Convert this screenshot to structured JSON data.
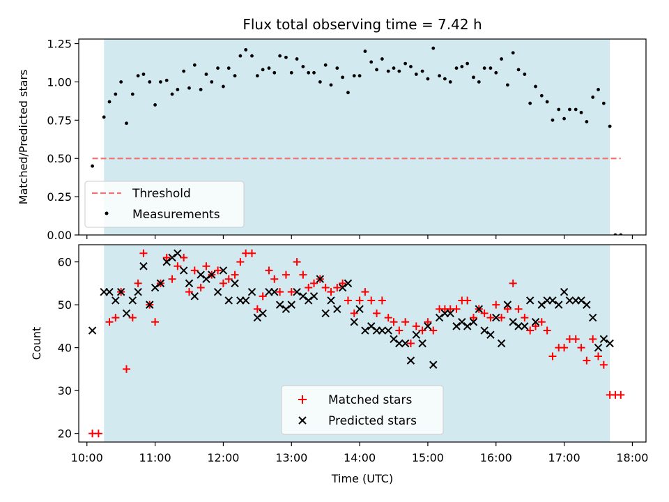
{
  "chart_data": [
    {
      "type": "scatter",
      "title": "Flux total observing time = 7.42 h",
      "xlabel": "",
      "ylabel": "Matched/Predicted stars",
      "xlim": [
        9.88,
        18.2
      ],
      "ylim": [
        0.0,
        1.28
      ],
      "yticks": [
        0.0,
        0.25,
        0.5,
        0.75,
        1.0,
        1.25
      ],
      "ytick_labels": [
        "0.00",
        "0.25",
        "0.50",
        "0.75",
        "1.00",
        "1.25"
      ],
      "shaded_span": [
        10.25,
        17.67
      ],
      "shade_color": "#d3e9f0",
      "threshold": {
        "name": "Threshold",
        "value": 0.5,
        "x": [
          10.08,
          17.83
        ],
        "color": "#f07474"
      },
      "legend": {
        "placement": "lower-left",
        "entries": [
          "Threshold",
          "Measurements"
        ]
      },
      "series": [
        {
          "name": "Measurements",
          "marker": "dot",
          "color": "#000000",
          "x": [
            10.08,
            10.25,
            10.33,
            10.42,
            10.5,
            10.58,
            10.67,
            10.75,
            10.83,
            10.92,
            11.0,
            11.08,
            11.17,
            11.25,
            11.33,
            11.42,
            11.5,
            11.58,
            11.67,
            11.75,
            11.83,
            11.92,
            12.0,
            12.08,
            12.17,
            12.25,
            12.33,
            12.42,
            12.5,
            12.58,
            12.67,
            12.75,
            12.83,
            12.92,
            13.0,
            13.08,
            13.17,
            13.25,
            13.33,
            13.42,
            13.5,
            13.58,
            13.67,
            13.75,
            13.83,
            13.92,
            14.0,
            14.08,
            14.17,
            14.25,
            14.33,
            14.42,
            14.5,
            14.58,
            14.67,
            14.75,
            14.83,
            14.92,
            15.0,
            15.08,
            15.17,
            15.25,
            15.33,
            15.42,
            15.5,
            15.58,
            15.67,
            15.75,
            15.83,
            15.92,
            16.0,
            16.08,
            16.17,
            16.25,
            16.33,
            16.42,
            16.5,
            16.58,
            16.67,
            16.75,
            16.83,
            16.92,
            17.0,
            17.08,
            17.17,
            17.25,
            17.33,
            17.42,
            17.5,
            17.58,
            17.67,
            17.75,
            17.83
          ],
          "y": [
            0.45,
            0.77,
            0.87,
            0.92,
            1.0,
            0.73,
            0.92,
            1.04,
            1.05,
            1.0,
            0.85,
            1.0,
            1.01,
            0.92,
            0.95,
            1.07,
            0.96,
            1.11,
            0.95,
            1.05,
            1.0,
            1.09,
            0.97,
            1.09,
            1.04,
            1.17,
            1.21,
            1.17,
            1.04,
            1.08,
            1.09,
            1.06,
            1.17,
            1.16,
            1.06,
            1.15,
            1.1,
            1.06,
            1.06,
            1.0,
            1.11,
            0.98,
            1.09,
            1.03,
            0.93,
            1.04,
            1.04,
            1.2,
            1.13,
            1.08,
            1.15,
            1.07,
            1.09,
            1.07,
            1.12,
            1.1,
            1.05,
            1.07,
            1.02,
            1.22,
            1.04,
            1.02,
            1.0,
            1.09,
            1.1,
            1.12,
            1.03,
            1.0,
            1.09,
            1.09,
            1.06,
            1.15,
            0.98,
            1.19,
            1.08,
            1.05,
            0.86,
            0.97,
            0.91,
            0.87,
            0.75,
            0.82,
            0.76,
            0.82,
            0.82,
            0.8,
            0.74,
            0.9,
            0.95,
            0.86,
            0.71,
            0.0,
            0.0
          ]
        }
      ]
    },
    {
      "type": "scatter",
      "title": "",
      "xlabel": "Time (UTC)",
      "ylabel": "Count",
      "xlim": [
        9.88,
        18.2
      ],
      "ylim": [
        18,
        64
      ],
      "xticks": [
        10,
        11,
        12,
        13,
        14,
        15,
        16,
        17,
        18
      ],
      "xtick_labels": [
        "10:00",
        "11:00",
        "12:00",
        "13:00",
        "14:00",
        "15:00",
        "16:00",
        "17:00",
        "18:00"
      ],
      "yticks": [
        20,
        30,
        40,
        50,
        60
      ],
      "ytick_labels": [
        "20",
        "30",
        "40",
        "50",
        "60"
      ],
      "shaded_span": [
        10.25,
        17.67
      ],
      "shade_color": "#d3e9f0",
      "legend": {
        "placement": "lower-center",
        "entries": [
          "Matched stars",
          "Predicted stars"
        ]
      },
      "series": [
        {
          "name": "Matched stars",
          "marker": "plus",
          "color": "#ff0000",
          "x": [
            10.08,
            10.17,
            10.33,
            10.42,
            10.5,
            10.58,
            10.67,
            10.75,
            10.83,
            10.92,
            11.0,
            11.08,
            11.17,
            11.25,
            11.33,
            11.42,
            11.5,
            11.58,
            11.67,
            11.75,
            11.83,
            11.92,
            12.0,
            12.08,
            12.17,
            12.25,
            12.33,
            12.42,
            12.5,
            12.58,
            12.67,
            12.75,
            12.83,
            12.92,
            13.0,
            13.08,
            13.17,
            13.25,
            13.33,
            13.42,
            13.5,
            13.58,
            13.67,
            13.75,
            13.83,
            13.92,
            14.0,
            14.08,
            14.17,
            14.25,
            14.33,
            14.42,
            14.5,
            14.58,
            14.67,
            14.75,
            14.83,
            14.92,
            15.0,
            15.08,
            15.17,
            15.25,
            15.33,
            15.42,
            15.5,
            15.58,
            15.67,
            15.75,
            15.83,
            15.92,
            16.0,
            16.08,
            16.17,
            16.25,
            16.33,
            16.42,
            16.5,
            16.58,
            16.67,
            16.75,
            16.83,
            16.92,
            17.0,
            17.08,
            17.17,
            17.25,
            17.33,
            17.42,
            17.5,
            17.58,
            17.67,
            17.75,
            17.83
          ],
          "y": [
            20,
            20,
            46,
            47,
            53,
            35,
            47,
            55,
            62,
            50,
            46,
            55,
            61,
            56,
            59,
            61,
            53,
            58,
            54,
            59,
            57,
            58,
            55,
            56,
            57,
            60,
            62,
            62,
            49,
            52,
            58,
            56,
            53,
            57,
            53,
            60,
            57,
            54,
            55,
            56,
            54,
            53,
            54,
            55,
            51,
            48,
            51,
            53,
            51,
            48,
            51,
            47,
            46,
            44,
            46,
            41,
            45,
            44,
            46,
            44,
            49,
            49,
            49,
            49,
            51,
            51,
            47,
            49,
            48,
            47,
            50,
            47,
            49,
            55,
            49,
            47,
            44,
            45,
            46,
            44,
            38,
            40,
            40,
            42,
            42,
            40,
            37,
            42,
            38,
            36,
            29,
            29,
            29
          ]
        },
        {
          "name": "Predicted stars",
          "marker": "x",
          "color": "#000000",
          "x": [
            10.08,
            10.25,
            10.33,
            10.42,
            10.5,
            10.58,
            10.67,
            10.75,
            10.83,
            10.92,
            11.0,
            11.08,
            11.17,
            11.25,
            11.33,
            11.42,
            11.5,
            11.58,
            11.67,
            11.75,
            11.83,
            11.92,
            12.0,
            12.08,
            12.17,
            12.25,
            12.33,
            12.42,
            12.5,
            12.58,
            12.67,
            12.75,
            12.83,
            12.92,
            13.0,
            13.08,
            13.17,
            13.25,
            13.33,
            13.42,
            13.5,
            13.58,
            13.67,
            13.75,
            13.83,
            13.92,
            14.0,
            14.08,
            14.17,
            14.25,
            14.33,
            14.42,
            14.5,
            14.58,
            14.67,
            14.75,
            14.83,
            14.92,
            15.0,
            15.08,
            15.17,
            15.25,
            15.33,
            15.42,
            15.5,
            15.58,
            15.67,
            15.75,
            15.83,
            15.92,
            16.0,
            16.08,
            16.17,
            16.25,
            16.33,
            16.42,
            16.5,
            16.58,
            16.67,
            16.75,
            16.83,
            16.92,
            17.0,
            17.08,
            17.17,
            17.25,
            17.33,
            17.42,
            17.5,
            17.58,
            17.67
          ],
          "y": [
            44,
            53,
            53,
            51,
            53,
            48,
            51,
            53,
            59,
            50,
            54,
            55,
            60,
            61,
            62,
            58,
            55,
            52,
            57,
            56,
            57,
            53,
            58,
            51,
            55,
            51,
            51,
            53,
            47,
            48,
            53,
            53,
            50,
            49,
            50,
            53,
            52,
            51,
            52,
            56,
            48,
            51,
            49,
            54,
            55,
            46,
            49,
            44,
            45,
            44,
            44,
            44,
            42,
            41,
            41,
            37,
            43,
            41,
            45,
            36,
            47,
            48,
            48,
            45,
            46,
            45,
            46,
            49,
            44,
            43,
            47,
            41,
            50,
            46,
            45,
            45,
            51,
            46,
            50,
            51,
            51,
            50,
            53,
            51,
            51,
            51,
            50,
            47,
            40,
            42,
            41
          ]
        }
      ]
    }
  ]
}
